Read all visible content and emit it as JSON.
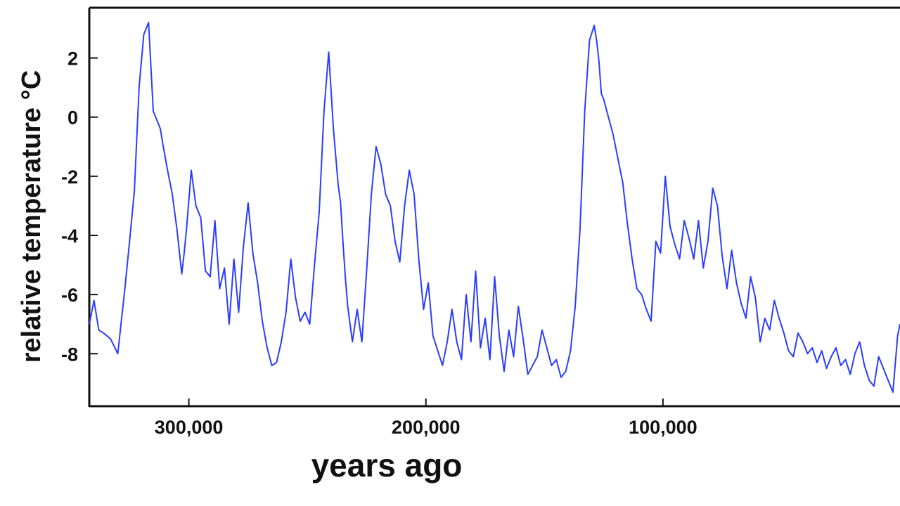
{
  "chart_data": {
    "type": "line",
    "title": "",
    "xlabel": "years ago",
    "ylabel": "relative temperature °C",
    "xlim": [
      342000,
      0
    ],
    "x_reversed": true,
    "ylim": [
      -9.8,
      3.7
    ],
    "x_ticks": [
      300000,
      200000,
      100000
    ],
    "x_tick_labels": [
      "300,000",
      "200,000",
      "100,000"
    ],
    "y_ticks": [
      2,
      0,
      -2,
      -4,
      -6,
      -8
    ],
    "y_tick_labels": [
      "2",
      "0",
      "-2",
      "-4",
      "-6",
      "-8"
    ],
    "grid": false,
    "legend": "none",
    "colors": {
      "line": "#2a3dff",
      "axis": "#111111"
    },
    "series": [
      {
        "x": [
          342000,
          340000,
          338000,
          336000,
          333000,
          330000,
          327000,
          325000,
          323000,
          321000,
          319000,
          317000,
          315000,
          314000,
          313000,
          312000,
          311000,
          309000,
          307000,
          305000,
          303000,
          302000,
          301000,
          299000,
          297000,
          295000,
          293000,
          291000,
          289000,
          287000,
          285000,
          283000,
          281000,
          279000,
          277000,
          275000,
          273000,
          271000,
          269000,
          267000,
          265000,
          263000,
          261000,
          259000,
          257000,
          255000,
          253000,
          251000,
          249000,
          247000,
          245000,
          243000,
          241000,
          239000,
          237000,
          236000,
          235000,
          234000,
          233000,
          231000,
          229000,
          227000,
          225000,
          223000,
          221000,
          219000,
          217000,
          215000,
          213000,
          211000,
          209000,
          207000,
          205000,
          203000,
          201000,
          199000,
          197000,
          195000,
          193000,
          191000,
          189000,
          187000,
          185000,
          183000,
          181000,
          179000,
          177000,
          175000,
          173000,
          171000,
          169000,
          167000,
          165000,
          163000,
          161000,
          159000,
          157000,
          155000,
          153000,
          151000,
          149000,
          147000,
          145000,
          143000,
          141000,
          139000,
          137000,
          135000,
          133000,
          131000,
          129000,
          128000,
          127000,
          126000,
          125000,
          123000,
          121000,
          119000,
          117000,
          115000,
          113000,
          111000,
          109000,
          107000,
          105000,
          103000,
          101000,
          99000,
          97000,
          95000,
          93000,
          91000,
          89000,
          87000,
          85000,
          83000,
          81000,
          79000,
          77000,
          75000,
          73000,
          71000,
          69000,
          67000,
          65000,
          63000,
          61000,
          59000,
          57000,
          55000,
          53000,
          51000,
          49000,
          47000,
          45000,
          43000,
          41000,
          39000,
          37000,
          35000,
          33000,
          31000,
          29000,
          27000,
          25000,
          23000,
          21000,
          19000,
          17000,
          15000,
          13000,
          11000,
          9000,
          7000,
          5000,
          3000,
          1000,
          0
        ],
        "values": [
          -7.0,
          -6.2,
          -7.2,
          -7.3,
          -7.5,
          -8.0,
          -5.8,
          -4.2,
          -2.5,
          1.0,
          2.8,
          3.2,
          0.2,
          0.0,
          -0.2,
          -0.4,
          -0.9,
          -1.8,
          -2.6,
          -3.8,
          -5.3,
          -4.6,
          -3.8,
          -1.8,
          -3.0,
          -3.4,
          -5.2,
          -5.4,
          -3.5,
          -5.8,
          -5.1,
          -7.0,
          -4.8,
          -6.6,
          -4.4,
          -2.9,
          -4.6,
          -5.6,
          -6.9,
          -7.8,
          -8.4,
          -8.3,
          -7.6,
          -6.6,
          -4.8,
          -6.1,
          -6.9,
          -6.6,
          -7.0,
          -5.0,
          -3.2,
          0.2,
          2.2,
          -0.4,
          -2.3,
          -2.9,
          -4.2,
          -5.4,
          -6.4,
          -7.6,
          -6.5,
          -7.6,
          -5.2,
          -2.6,
          -1.0,
          -1.6,
          -2.6,
          -3.0,
          -4.2,
          -4.9,
          -3.0,
          -1.8,
          -2.6,
          -4.8,
          -6.5,
          -5.6,
          -7.4,
          -7.9,
          -8.4,
          -7.6,
          -6.5,
          -7.6,
          -8.2,
          -6.0,
          -7.6,
          -5.2,
          -7.8,
          -6.8,
          -8.2,
          -5.4,
          -7.4,
          -8.6,
          -7.2,
          -8.1,
          -6.4,
          -7.5,
          -8.7,
          -8.4,
          -8.1,
          -7.2,
          -7.8,
          -8.4,
          -8.2,
          -8.8,
          -8.6,
          -7.9,
          -6.4,
          -3.8,
          0.2,
          2.6,
          3.1,
          2.6,
          1.9,
          0.8,
          0.6,
          0.0,
          -0.6,
          -1.4,
          -2.2,
          -3.6,
          -4.8,
          -5.8,
          -6.0,
          -6.5,
          -6.9,
          -4.2,
          -4.6,
          -2.0,
          -3.7,
          -4.3,
          -4.8,
          -3.5,
          -4.1,
          -4.8,
          -3.5,
          -5.1,
          -4.2,
          -2.4,
          -3.0,
          -4.7,
          -5.8,
          -4.5,
          -5.6,
          -6.3,
          -6.8,
          -5.4,
          -6.1,
          -7.6,
          -6.8,
          -7.2,
          -6.2,
          -6.8,
          -7.3,
          -7.9,
          -8.1,
          -7.3,
          -7.6,
          -8.0,
          -7.8,
          -8.3,
          -7.9,
          -8.5,
          -8.1,
          -7.8,
          -8.4,
          -8.2,
          -8.7,
          -8.0,
          -7.6,
          -8.4,
          -8.9,
          -9.1,
          -8.1,
          -8.5,
          -8.9,
          -9.3,
          -7.4,
          -7.0
        ]
      }
    ]
  }
}
